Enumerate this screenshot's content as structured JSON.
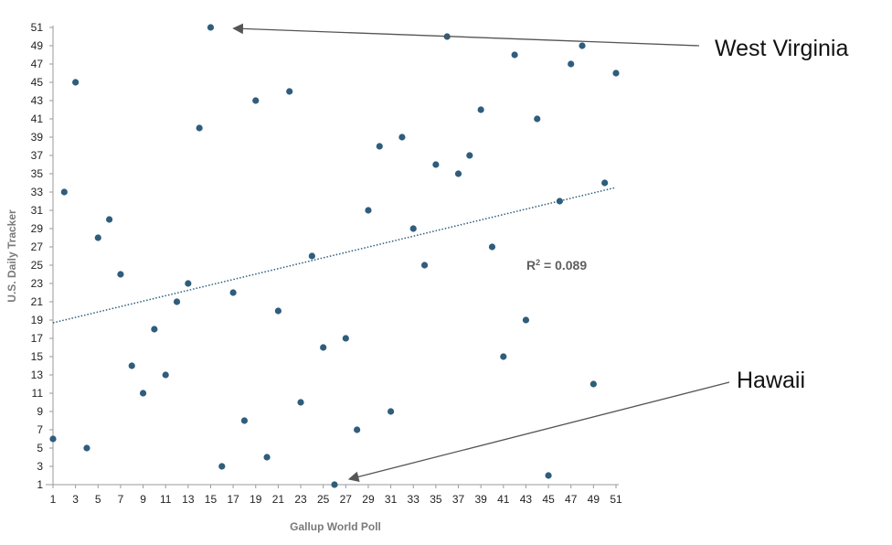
{
  "chart_data": {
    "type": "scatter",
    "title": "",
    "xlabel": "Gallup World Poll",
    "ylabel": "U.S. Daily Tracker",
    "xlim": [
      1,
      51
    ],
    "ylim": [
      1,
      51
    ],
    "x_ticks": [
      1,
      3,
      5,
      7,
      9,
      11,
      13,
      15,
      17,
      19,
      21,
      23,
      25,
      27,
      29,
      31,
      33,
      35,
      37,
      39,
      41,
      43,
      45,
      47,
      49,
      51
    ],
    "y_ticks": [
      1,
      3,
      5,
      7,
      9,
      11,
      13,
      15,
      17,
      19,
      21,
      23,
      25,
      27,
      29,
      31,
      33,
      35,
      37,
      39,
      41,
      43,
      45,
      47,
      49,
      51
    ],
    "grid": false,
    "legend": "none",
    "point_color": "#2f5d7c",
    "trendline": {
      "style": "dotted",
      "color": "#2f5d7c",
      "start": [
        1,
        18.7
      ],
      "end": [
        51,
        33.5
      ],
      "label": "R² = 0.089",
      "label_main": "R",
      "label_sup": "2",
      "label_rest": " = 0.089"
    },
    "points": [
      {
        "x": 1,
        "y": 6
      },
      {
        "x": 2,
        "y": 33
      },
      {
        "x": 3,
        "y": 45
      },
      {
        "x": 4,
        "y": 5
      },
      {
        "x": 5,
        "y": 28
      },
      {
        "x": 6,
        "y": 30
      },
      {
        "x": 7,
        "y": 24
      },
      {
        "x": 8,
        "y": 14
      },
      {
        "x": 9,
        "y": 11
      },
      {
        "x": 10,
        "y": 18
      },
      {
        "x": 11,
        "y": 13
      },
      {
        "x": 12,
        "y": 21
      },
      {
        "x": 13,
        "y": 23
      },
      {
        "x": 14,
        "y": 40
      },
      {
        "x": 15,
        "y": 51
      },
      {
        "x": 16,
        "y": 3
      },
      {
        "x": 17,
        "y": 22
      },
      {
        "x": 18,
        "y": 8
      },
      {
        "x": 19,
        "y": 43
      },
      {
        "x": 20,
        "y": 4
      },
      {
        "x": 21,
        "y": 20
      },
      {
        "x": 22,
        "y": 44
      },
      {
        "x": 23,
        "y": 10
      },
      {
        "x": 24,
        "y": 26
      },
      {
        "x": 25,
        "y": 16
      },
      {
        "x": 26,
        "y": 1
      },
      {
        "x": 27,
        "y": 17
      },
      {
        "x": 28,
        "y": 7
      },
      {
        "x": 29,
        "y": 31
      },
      {
        "x": 30,
        "y": 38
      },
      {
        "x": 31,
        "y": 9
      },
      {
        "x": 32,
        "y": 39
      },
      {
        "x": 33,
        "y": 29
      },
      {
        "x": 34,
        "y": 25
      },
      {
        "x": 35,
        "y": 36
      },
      {
        "x": 36,
        "y": 50
      },
      {
        "x": 37,
        "y": 35
      },
      {
        "x": 38,
        "y": 37
      },
      {
        "x": 39,
        "y": 42
      },
      {
        "x": 40,
        "y": 27
      },
      {
        "x": 41,
        "y": 15
      },
      {
        "x": 42,
        "y": 48
      },
      {
        "x": 43,
        "y": 19
      },
      {
        "x": 44,
        "y": 41
      },
      {
        "x": 45,
        "y": 2
      },
      {
        "x": 46,
        "y": 32
      },
      {
        "x": 47,
        "y": 47
      },
      {
        "x": 48,
        "y": 49
      },
      {
        "x": 49,
        "y": 12
      },
      {
        "x": 50,
        "y": 34
      },
      {
        "x": 51,
        "y": 46
      }
    ],
    "annotations": [
      {
        "label": "West Virginia",
        "point": {
          "x": 15,
          "y": 51
        }
      },
      {
        "label": "Hawaii",
        "point": {
          "x": 26,
          "y": 1
        }
      }
    ]
  }
}
